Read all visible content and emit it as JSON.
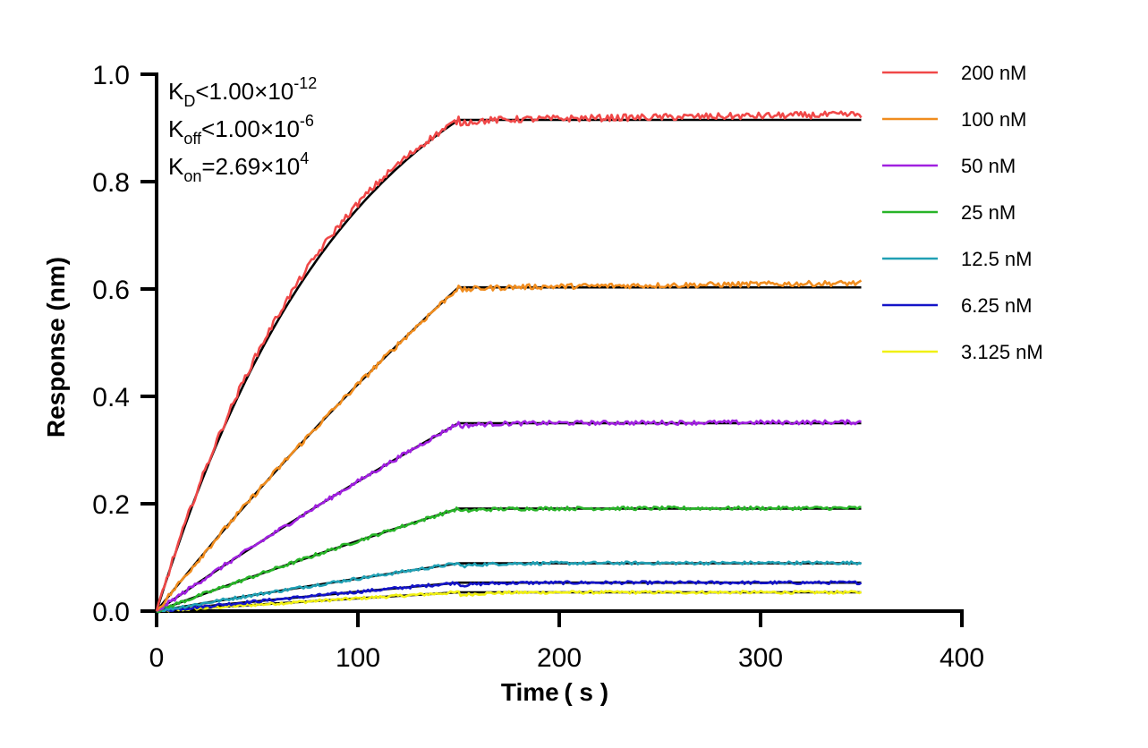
{
  "chart_data": {
    "type": "line",
    "xlabel": "Time ( s )",
    "ylabel": "Response (nm)",
    "xlim": [
      0,
      400
    ],
    "ylim": [
      0,
      1.0
    ],
    "x_ticks": [
      "0",
      "100",
      "200",
      "300",
      "400"
    ],
    "y_ticks": [
      "0.0",
      "0.2",
      "0.4",
      "0.6",
      "0.8",
      "1.0"
    ],
    "grid": false,
    "legend_position": "top-right",
    "association_end": 150,
    "x_end": 350,
    "annotations": {
      "kd_main": "K",
      "kd_sub": "D",
      "kd_text": "<1.00×10",
      "kd_exp": "-12",
      "koff_main": "K",
      "koff_sub": "off",
      "koff_text": "<1.00×10",
      "koff_exp": "-6",
      "kon_main": "K",
      "kon_sub": "on",
      "kon_text": "=2.69×10",
      "kon_exp": "4"
    },
    "fit_color": "#000000",
    "series": [
      {
        "name": "200 nM",
        "color": "#f04848",
        "plateau": 0.915,
        "final": 0.925,
        "tau": 95
      },
      {
        "name": "100 nM",
        "color": "#f08c1e",
        "plateau": 0.603,
        "final": 0.611,
        "tau": 480
      },
      {
        "name": "50 nM",
        "color": "#a020e0",
        "plateau": 0.35,
        "final": 0.352,
        "tau": 700
      },
      {
        "name": "25 nM",
        "color": "#28b428",
        "plateau": 0.191,
        "final": 0.192,
        "tau": 900
      },
      {
        "name": "12.5 nM",
        "color": "#20a0b4",
        "plateau": 0.089,
        "final": 0.09,
        "tau": 1100
      },
      {
        "name": "6.25 nM",
        "color": "#1414c8",
        "plateau": 0.053,
        "final": 0.053,
        "tau": 1300
      },
      {
        "name": "3.125 nM",
        "color": "#f0f014",
        "plateau": 0.035,
        "final": 0.035,
        "tau": 1500
      }
    ]
  }
}
